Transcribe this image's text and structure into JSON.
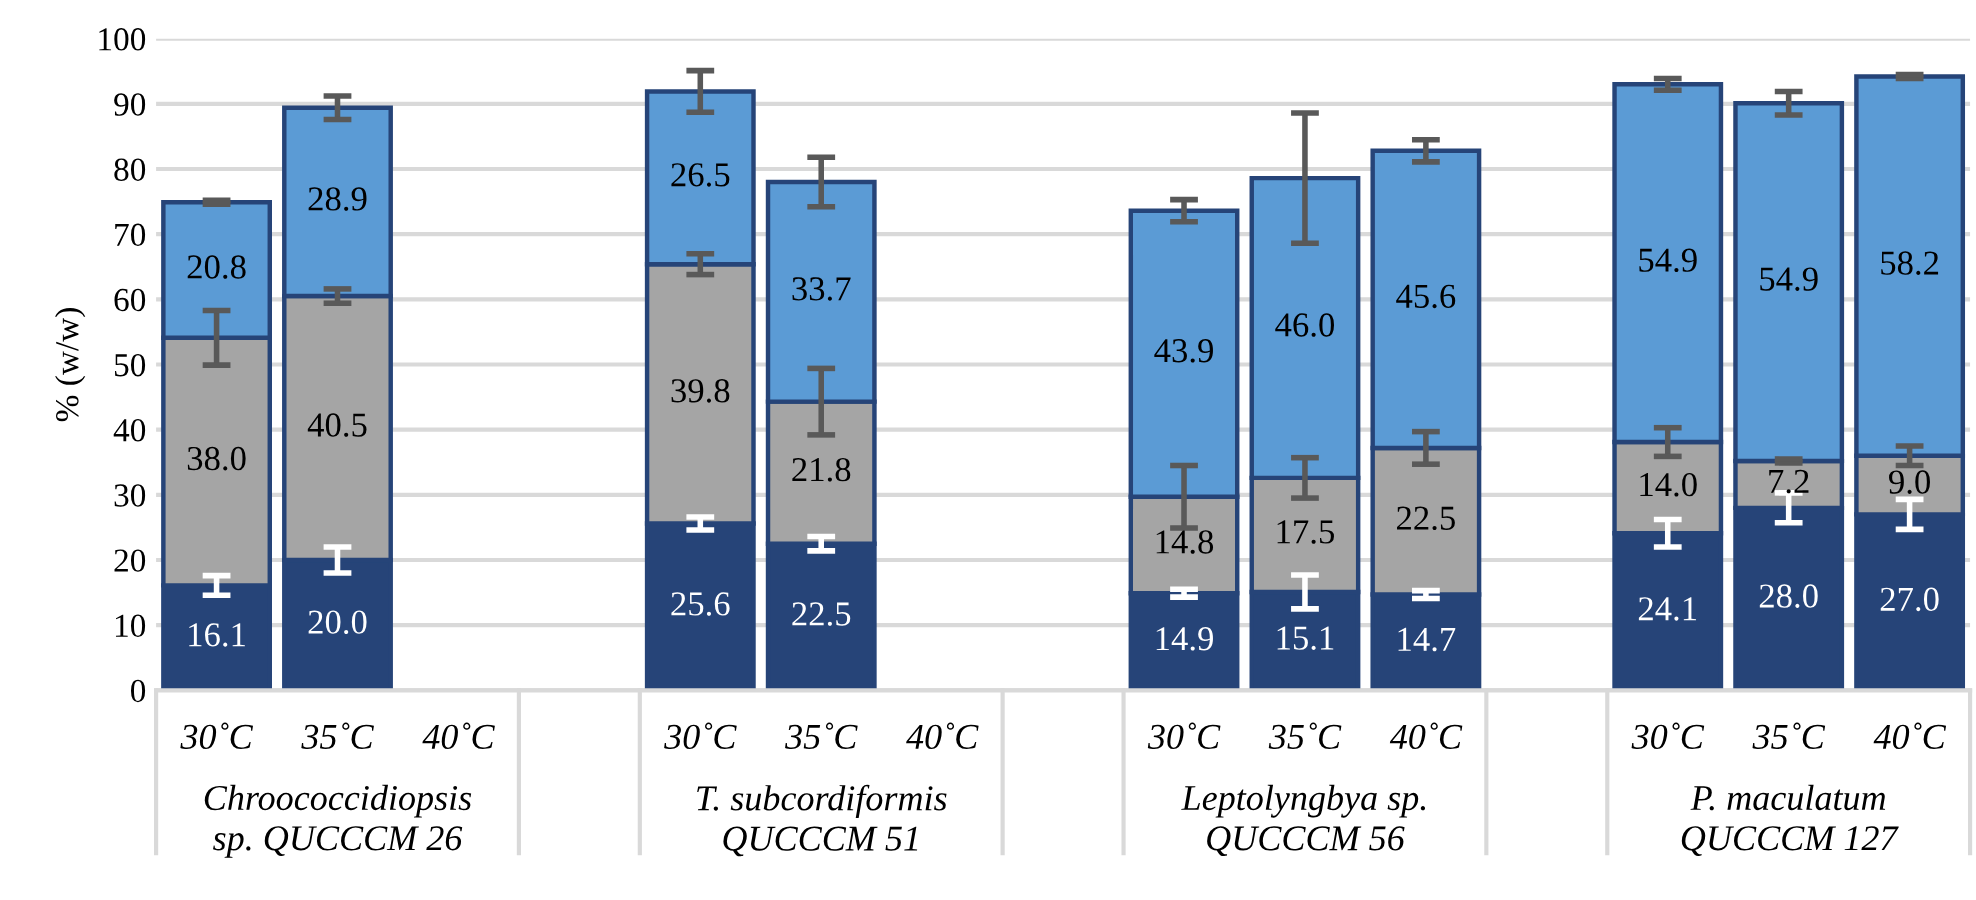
{
  "chart_data": {
    "type": "bar",
    "stacked": true,
    "ylabel": "% (w/w)",
    "categories": [
      "30˚C",
      "35˚C",
      "40˚C",
      null,
      "30˚C",
      "35˚C",
      "40˚C",
      null,
      "30˚C",
      "35˚C",
      "40˚C",
      null,
      "30˚C",
      "35˚C",
      "40˚C"
    ],
    "series": [
      {
        "color": "#264478",
        "values": [
          16.1,
          20.0,
          null,
          null,
          25.6,
          22.5,
          null,
          null,
          14.9,
          15.1,
          14.7,
          null,
          24.1,
          28.0,
          27.0
        ],
        "value_labels": [
          "16.1",
          "20.0",
          null,
          null,
          "25.6",
          "22.5",
          null,
          null,
          "14.9",
          "15.1",
          "14.7",
          null,
          "24.1",
          "28.0",
          "27.0"
        ],
        "errors": [
          1.5,
          2.0,
          null,
          null,
          1.0,
          1.1,
          null,
          null,
          0.6,
          2.6,
          0.6,
          null,
          2.1,
          2.3,
          2.3
        ]
      },
      {
        "color": "#a5a5a5",
        "values": [
          38.0,
          40.5,
          null,
          null,
          39.8,
          21.8,
          null,
          null,
          14.8,
          17.5,
          22.5,
          null,
          14.0,
          7.2,
          9.0
        ],
        "value_labels": [
          "38.0",
          "40.5",
          null,
          null,
          "39.8",
          "21.8",
          null,
          null,
          "14.8",
          "17.5",
          "22.5",
          null,
          "14.0",
          "7.2",
          "9.0"
        ],
        "errors": [
          4.2,
          1.1,
          null,
          null,
          1.6,
          5.1,
          null,
          null,
          4.8,
          3.1,
          2.5,
          null,
          2.2,
          0.3,
          1.5
        ]
      },
      {
        "color": "#5b9bd5",
        "values": [
          20.8,
          28.9,
          null,
          null,
          26.5,
          33.7,
          null,
          null,
          43.9,
          46.0,
          45.6,
          null,
          54.9,
          54.9,
          58.2
        ],
        "value_labels": [
          "20.8",
          "28.9",
          null,
          null,
          "26.5",
          "33.7",
          null,
          null,
          "43.9",
          "46.0",
          "45.6",
          null,
          "54.9",
          "54.9",
          "58.2"
        ],
        "errors": [
          0.3,
          1.8,
          null,
          null,
          3.2,
          3.8,
          null,
          null,
          1.7,
          10.0,
          1.7,
          null,
          0.9,
          1.8,
          0.3
        ]
      }
    ],
    "ylim": [
      0,
      100
    ],
    "yticks": [
      0,
      10,
      20,
      30,
      40,
      50,
      60,
      70,
      80,
      90,
      100
    ],
    "grid": "y",
    "annotations": [
      "Chroococcidiopsis\nsp. QUCCCM 26",
      "T. subcordiformis\nQUCCCM 51",
      "Leptolyngbya sp.\nQUCCCM 56",
      "P. maculatum\nQUCCCM 127"
    ]
  }
}
